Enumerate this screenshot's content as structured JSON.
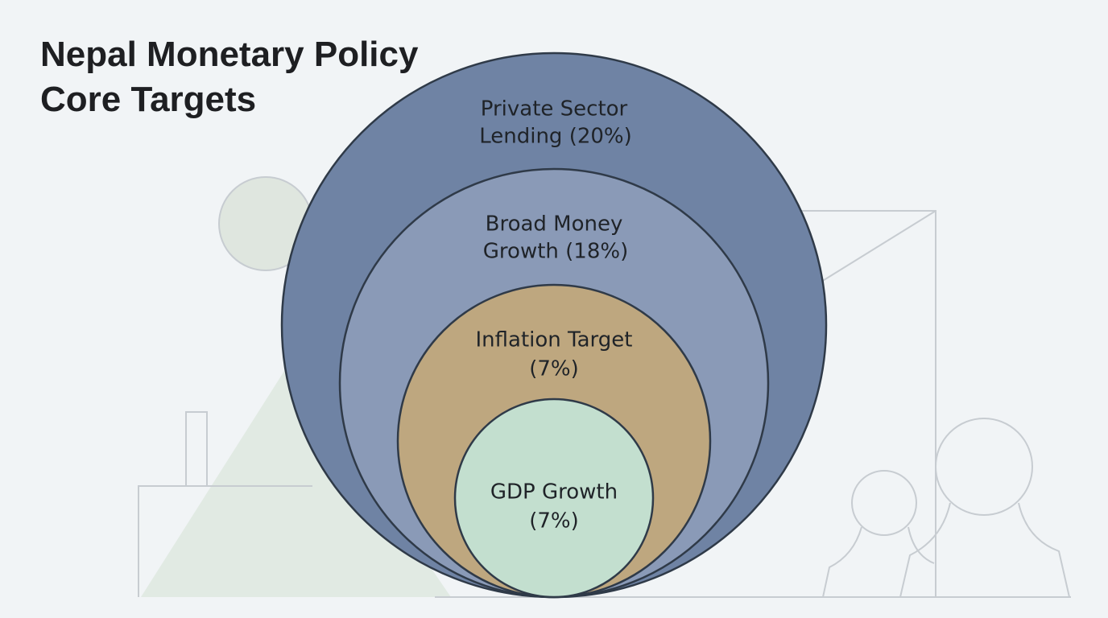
{
  "header": {
    "title_lines": [
      "Nepal Monetary Policy",
      "Core Targets"
    ]
  },
  "nodes": [
    {
      "lines": [
        "Private Sector",
        "Lending (20%)"
      ]
    },
    {
      "lines": [
        "Broad Money",
        "Growth (18%)"
      ]
    },
    {
      "lines": [
        "Inflation Target",
        "(7%)"
      ]
    },
    {
      "lines": [
        "GDP Growth",
        "(7%)"
      ]
    }
  ]
}
